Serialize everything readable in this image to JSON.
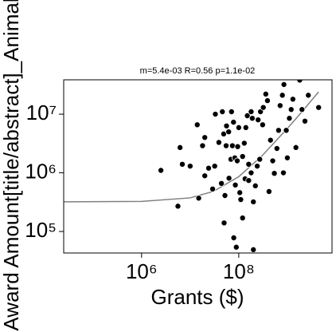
{
  "chart_data": {
    "type": "scatter",
    "title": "m=5.4e-03 R=0.56 p=1.1e-02",
    "x_label": "Grants ($)",
    "y_label": "Award Amount[title/abstract]_Animal",
    "xscale": "log",
    "yscale": "log",
    "xlim": [
      25000,
      8300000000
    ],
    "ylim": [
      43000,
      38500000
    ],
    "xticks": [
      {
        "value": 1000000,
        "label": "10⁶"
      },
      {
        "value": 100000000,
        "label": "10⁸"
      }
    ],
    "yticks": [
      {
        "value": 100000,
        "label": "10⁵"
      },
      {
        "value": 1000000,
        "label": "10⁶"
      },
      {
        "value": 10000000,
        "label": "10⁷"
      }
    ],
    "grid": false,
    "color": "#000000",
    "x": [
      2500000.0,
      5600000.0,
      6200000.0,
      6900000.0,
      10000000.0,
      14000000.0,
      15000000.0,
      18000000.0,
      20000000.0,
      24000000.0,
      29000000.0,
      32000000.0,
      33000000.0,
      39000000.0,
      44000000.0,
      46000000.0,
      49000000.0,
      52000000.0,
      56000000.0,
      62000000.0,
      63000000.0,
      69000000.0,
      71000000.0,
      78000000.0,
      83000000.0,
      85000000.0,
      93000000.0,
      100000000.0,
      105000000.0,
      110000000.0,
      120000000.0,
      120000000.0,
      130000000.0,
      135000000.0,
      150000000.0,
      160000000.0,
      180000000.0,
      180000000.0,
      200000000.0,
      220000000.0,
      240000000.0,
      250000000.0,
      270000000.0,
      280000000.0,
      310000000.0,
      320000000.0,
      360000000.0,
      390000000.0,
      420000000.0,
      450000000.0,
      500000000.0,
      540000000.0,
      610000000.0,
      710000000.0,
      790000000.0,
      830000000.0,
      850000000.0,
      950000000.0,
      1000000000.0,
      1200000000.0,
      1300000000.0,
      1500000000.0,
      1800000000.0,
      2000000000.0,
      2300000000.0,
      2700000000.0,
      4400000000.0,
      89000000.0,
      200000000.0,
      79000000.0,
      50000000.0,
      20000000.0,
      74000000.0,
      140000000.0,
      660000000.0,
      1100000000.0,
      190000000.0,
      55000000.0,
      95000000.0,
      160000000.0
    ],
    "values": [
      1100000.0,
      270000.0,
      2700000.0,
      1400000.0,
      1300000.0,
      6600000.0,
      370000.0,
      2900000.0,
      4000000.0,
      1200000.0,
      530000.0,
      1300000.0,
      10000000.0,
      3300000.0,
      660000.0,
      11000000.0,
      4600000.0,
      410000.0,
      6300000.0,
      5000000.0,
      810000.0,
      1700000.0,
      11000000.0,
      7300000.0,
      1800000.0,
      620000.0,
      1600000.0,
      5900000.0,
      460000.0,
      350000.0,
      170000.0,
      1900000.0,
      3200000.0,
      790000.0,
      9400000.0,
      1400000.0,
      11000000.0,
      1000000.0,
      320000.0,
      600000.0,
      1300000.0,
      8000000.0,
      1700000.0,
      11000000.0,
      6600000.0,
      13000000.0,
      22000000.0,
      17000000.0,
      480000.0,
      3600000.0,
      1600000.0,
      980000.0,
      2600000.0,
      14000000.0,
      21000000.0,
      1000000.0,
      32000000.0,
      5300000.0,
      1800000.0,
      12000000.0,
      18000000.0,
      2700000.0,
      38000000.0,
      12000000.0,
      7600000.0,
      21000000.0,
      13000000.0,
      54000.0,
      49000.0,
      78000.0,
      140000.0,
      890000.0,
      2900000.0,
      5900000.0,
      5300000.0,
      8500000.0,
      8500000.0,
      2900000.0,
      2800000.0,
      740000.0
    ],
    "fit": {
      "color": "#808080",
      "x": [
        25000,
        1000000,
        10000000,
        30000000,
        100000000,
        300000000,
        1000000000,
        2000000000,
        4400000000
      ],
      "values": [
        320000,
        325000,
        374000,
        482000,
        860000,
        1940000,
        5700000,
        11000000,
        24000000
      ]
    }
  }
}
